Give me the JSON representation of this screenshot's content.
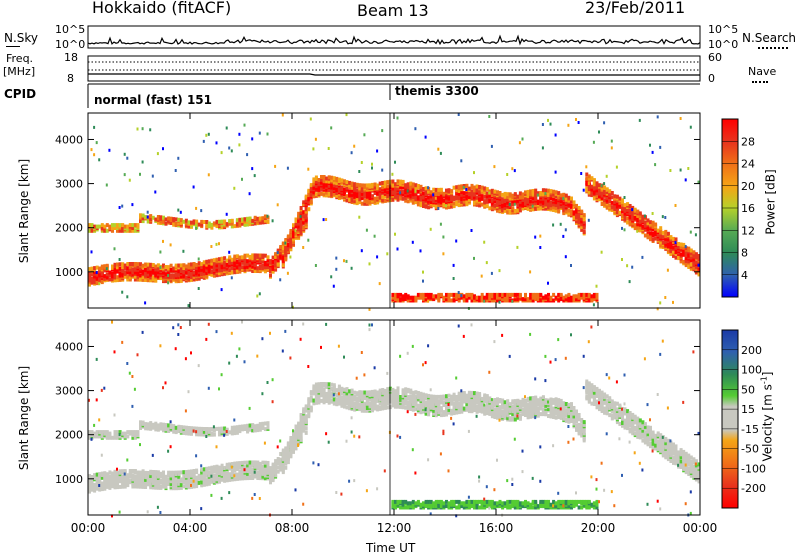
{
  "header": {
    "station": "Hokkaido (fitACF)",
    "beam": "Beam 13",
    "date": "23/Feb/2011"
  },
  "strip": {
    "nsky_label": "N.Sky",
    "nsearch_label": "N.Search",
    "freq_label_1": "Freq.",
    "freq_label_2": "[MHz]",
    "nave_label": "Nave",
    "cpid_label": "CPID",
    "left_ticks_top": [
      "10^5",
      "10^0"
    ],
    "right_ticks_top": [
      "10^5",
      "10^0"
    ],
    "left_ticks_freq": [
      "18",
      "8"
    ],
    "right_ticks_nave": [
      "60",
      "0"
    ],
    "cpid_segments": [
      {
        "label": "normal (fast) 151",
        "start_hour": 0
      },
      {
        "label": "themis 3300",
        "start_hour": 11.9
      }
    ]
  },
  "chart_data": [
    {
      "type": "heatmap",
      "name": "power-panel",
      "ylabel": "Slant Range [km]",
      "yticks": [
        1000,
        2000,
        3000,
        4000
      ],
      "ylim": [
        180,
        4600
      ],
      "xlim": [
        0,
        24
      ],
      "colorbar": {
        "label": "Power [dB]",
        "ticks": [
          "4",
          "8",
          "12",
          "16",
          "20",
          "24",
          "28"
        ],
        "colors": [
          "#0000ff",
          "#2f5fb0",
          "#2e8b57",
          "#55aa55",
          "#b5d12a",
          "#f5a516",
          "#f07018",
          "#e8351e",
          "#ff0000"
        ]
      }
    },
    {
      "type": "heatmap",
      "name": "velocity-panel",
      "ylabel": "Slant Range [km]",
      "yticks": [
        1000,
        2000,
        3000,
        4000
      ],
      "ylim": [
        180,
        4600
      ],
      "xlim": [
        0,
        24
      ],
      "xticks": [
        "00:00",
        "04:00",
        "08:00",
        "12:00",
        "16:00",
        "20:00",
        "00:00"
      ],
      "xlabel": "Time UT",
      "colorbar": {
        "label": "Velocity [m s",
        "label_sup": "-1",
        "label_end": "]",
        "ticks": [
          "200",
          "100",
          "50",
          "15",
          "-15",
          "-50",
          "-100",
          "-200"
        ],
        "colors": [
          "#1a3aa6",
          "#2f5fb0",
          "#2e8b57",
          "#55cc33",
          "#c8c8c0",
          "#f5a516",
          "#f07018",
          "#e8351e",
          "#ff0000"
        ]
      }
    }
  ]
}
